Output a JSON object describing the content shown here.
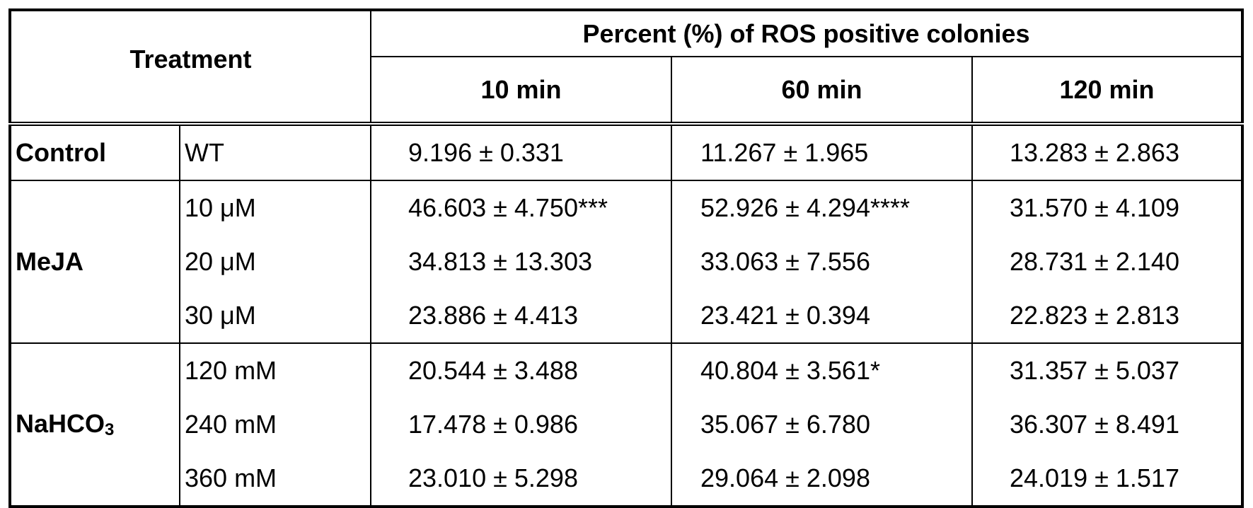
{
  "table": {
    "header": {
      "treatment": "Treatment",
      "span_title": "Percent (%) of ROS positive colonies",
      "times": [
        "10 min",
        "60 min",
        "120 min"
      ]
    },
    "groups": [
      {
        "label": "Control",
        "rows": [
          {
            "level": "WT",
            "values": [
              "9.196 ± 0.331",
              "11.267 ± 1.965",
              "13.283 ± 2.863"
            ]
          }
        ]
      },
      {
        "label": "MeJA",
        "rows": [
          {
            "level": "10 μM",
            "values": [
              "46.603 ± 4.750***",
              "52.926 ± 4.294****",
              "31.570 ± 4.109"
            ]
          },
          {
            "level": "20 μM",
            "values": [
              "34.813 ± 13.303",
              "33.063 ± 7.556",
              "28.731 ± 2.140"
            ]
          },
          {
            "level": "30 μM",
            "values": [
              "23.886 ± 4.413",
              "23.421 ± 0.394",
              "22.823 ± 2.813"
            ]
          }
        ]
      },
      {
        "label_main": "NaHCO",
        "label_sub": "3",
        "rows": [
          {
            "level": "120 mM",
            "values": [
              "20.544 ± 3.488",
              "40.804 ± 3.561*",
              "31.357 ± 5.037"
            ]
          },
          {
            "level": "240 mM",
            "values": [
              "17.478 ± 0.986",
              "35.067 ± 6.780",
              "36.307 ± 8.491"
            ]
          },
          {
            "level": "360 mM",
            "values": [
              "23.010 ± 5.298",
              "29.064 ± 2.098",
              "24.019 ± 1.517"
            ]
          }
        ]
      }
    ]
  }
}
